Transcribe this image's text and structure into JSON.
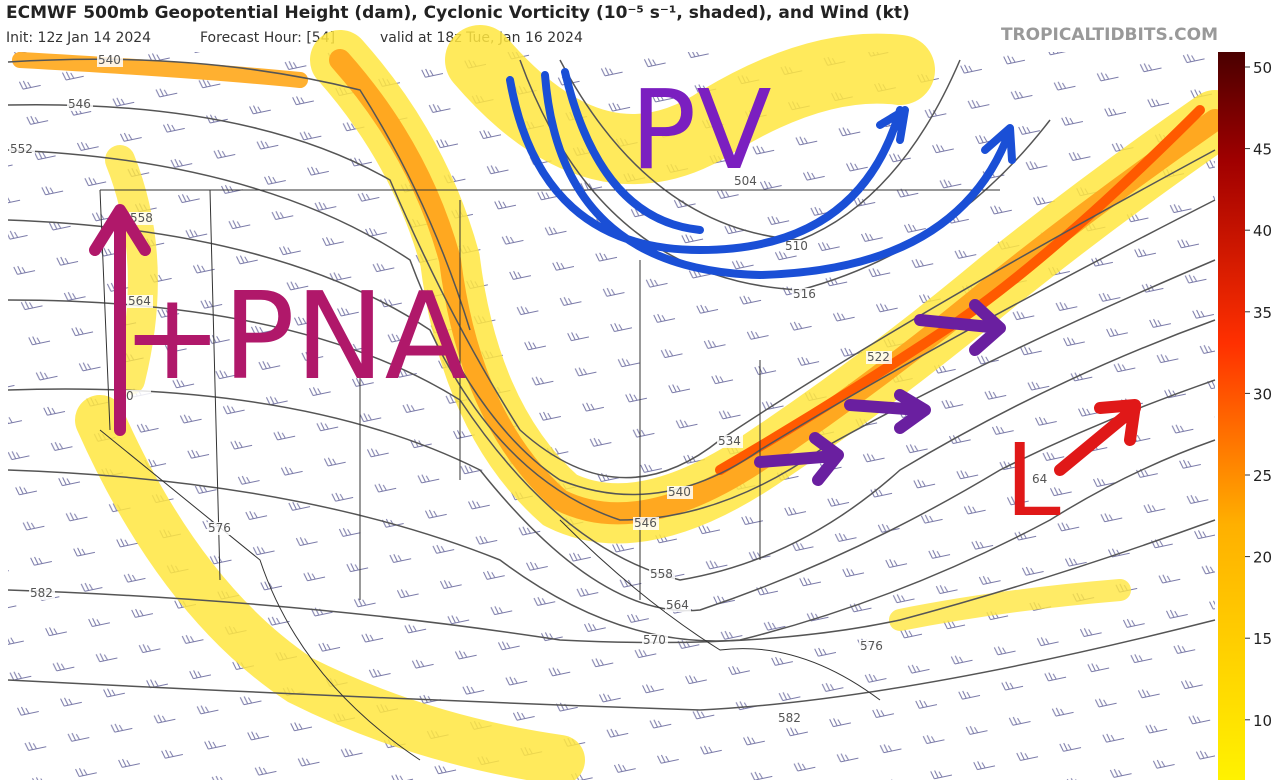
{
  "header": {
    "title": "ECMWF 500mb Geopotential Height (dam), Cyclonic Vorticity (10⁻⁵ s⁻¹, shaded), and Wind (kt)",
    "init": "Init: 12z Jan 14 2024",
    "forecast_hour": "Forecast Hour: [54]",
    "valid": "valid at 18z Tue, Jan 16 2024",
    "site": "TROPICALTIDBITS.COM"
  },
  "colorbar": {
    "ticks": [
      "50",
      "45",
      "40",
      "35",
      "30",
      "25",
      "20",
      "15",
      "10"
    ]
  },
  "contour_labels": [
    "540",
    "546",
    "552",
    "558",
    "564",
    "0",
    "576",
    "582",
    "504",
    "510",
    "516",
    "522",
    "534",
    "540",
    "546",
    "558",
    "564",
    "570",
    "576",
    "582",
    "64"
  ],
  "annotations": {
    "pna": "+PNA",
    "pv": "PV",
    "low": "L"
  }
}
